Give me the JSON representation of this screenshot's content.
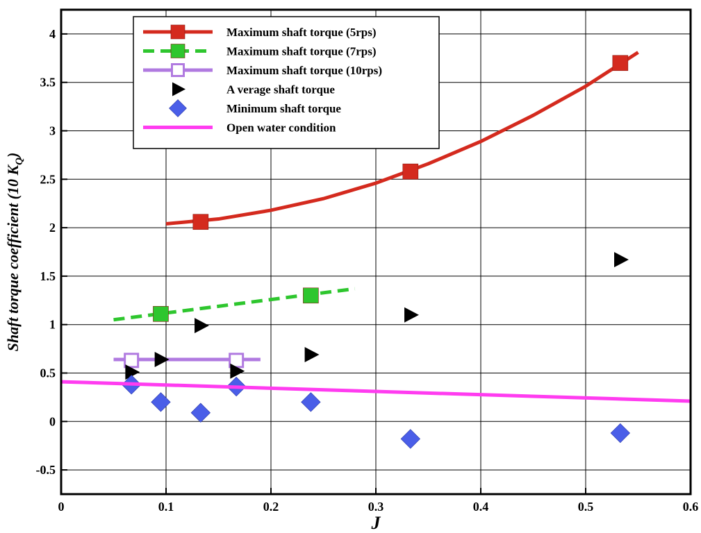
{
  "chart_data": {
    "type": "line",
    "xlabel": "J",
    "ylabel": "Shaft torque coefficient (10 K",
    "ylabel_sub": "Q",
    "ylabel_close": ")",
    "xlim": [
      0,
      0.6
    ],
    "ylim": [
      -0.75,
      4.25
    ],
    "xticks": [
      "0",
      "0.1",
      "0.2",
      "0.3",
      "0.4",
      "0.5",
      "0.6"
    ],
    "yticks": [
      "-0.5",
      "0",
      "0.5",
      "1",
      "1.5",
      "2",
      "2.5",
      "3",
      "3.5",
      "4"
    ],
    "grid": true,
    "legend_position": "top-left",
    "series": [
      {
        "name": "Maximum shaft torque (5rps)",
        "color": "#d42a1e",
        "line": "solid",
        "marker": "filled-square",
        "points": [
          {
            "x": 0.133,
            "y": 2.06
          },
          {
            "x": 0.333,
            "y": 2.58
          },
          {
            "x": 0.533,
            "y": 3.7
          }
        ],
        "fit": [
          {
            "x": 0.1,
            "y": 2.04
          },
          {
            "x": 0.15,
            "y": 2.09
          },
          {
            "x": 0.2,
            "y": 2.18
          },
          {
            "x": 0.25,
            "y": 2.3
          },
          {
            "x": 0.3,
            "y": 2.46
          },
          {
            "x": 0.35,
            "y": 2.66
          },
          {
            "x": 0.4,
            "y": 2.89
          },
          {
            "x": 0.45,
            "y": 3.16
          },
          {
            "x": 0.5,
            "y": 3.46
          },
          {
            "x": 0.55,
            "y": 3.81
          }
        ]
      },
      {
        "name": "Maximum shaft torque (7rps)",
        "color": "#2ec62e",
        "line": "dashed",
        "marker": "filled-square",
        "points": [
          {
            "x": 0.095,
            "y": 1.11
          },
          {
            "x": 0.238,
            "y": 1.3
          }
        ],
        "fit": [
          {
            "x": 0.05,
            "y": 1.05
          },
          {
            "x": 0.28,
            "y": 1.37
          }
        ]
      },
      {
        "name": "Maximum shaft torque (10rps)",
        "color": "#b07ae0",
        "line": "solid",
        "marker": "open-square",
        "points": [
          {
            "x": 0.067,
            "y": 0.63
          },
          {
            "x": 0.167,
            "y": 0.63
          }
        ],
        "fit": [
          {
            "x": 0.05,
            "y": 0.64
          },
          {
            "x": 0.19,
            "y": 0.64
          }
        ]
      },
      {
        "name": "A verage shaft torque",
        "color": "#000000",
        "line": "none",
        "marker": "right-triangle",
        "points": [
          {
            "x": 0.067,
            "y": 0.51
          },
          {
            "x": 0.095,
            "y": 0.64
          },
          {
            "x": 0.133,
            "y": 0.99
          },
          {
            "x": 0.167,
            "y": 0.52
          },
          {
            "x": 0.238,
            "y": 0.69
          },
          {
            "x": 0.333,
            "y": 1.1
          },
          {
            "x": 0.533,
            "y": 1.67
          }
        ]
      },
      {
        "name": "Minimum shaft torque",
        "color": "#4a5ee8",
        "line": "none",
        "marker": "diamond",
        "points": [
          {
            "x": 0.067,
            "y": 0.38
          },
          {
            "x": 0.095,
            "y": 0.2
          },
          {
            "x": 0.133,
            "y": 0.09
          },
          {
            "x": 0.167,
            "y": 0.36
          },
          {
            "x": 0.238,
            "y": 0.2
          },
          {
            "x": 0.333,
            "y": -0.18
          },
          {
            "x": 0.533,
            "y": -0.12
          }
        ]
      },
      {
        "name": "Open water condition",
        "color": "#ff3cf0",
        "line": "solid",
        "marker": "none",
        "fit": [
          {
            "x": 0,
            "y": 0.41
          },
          {
            "x": 0.6,
            "y": 0.21
          }
        ]
      }
    ]
  }
}
